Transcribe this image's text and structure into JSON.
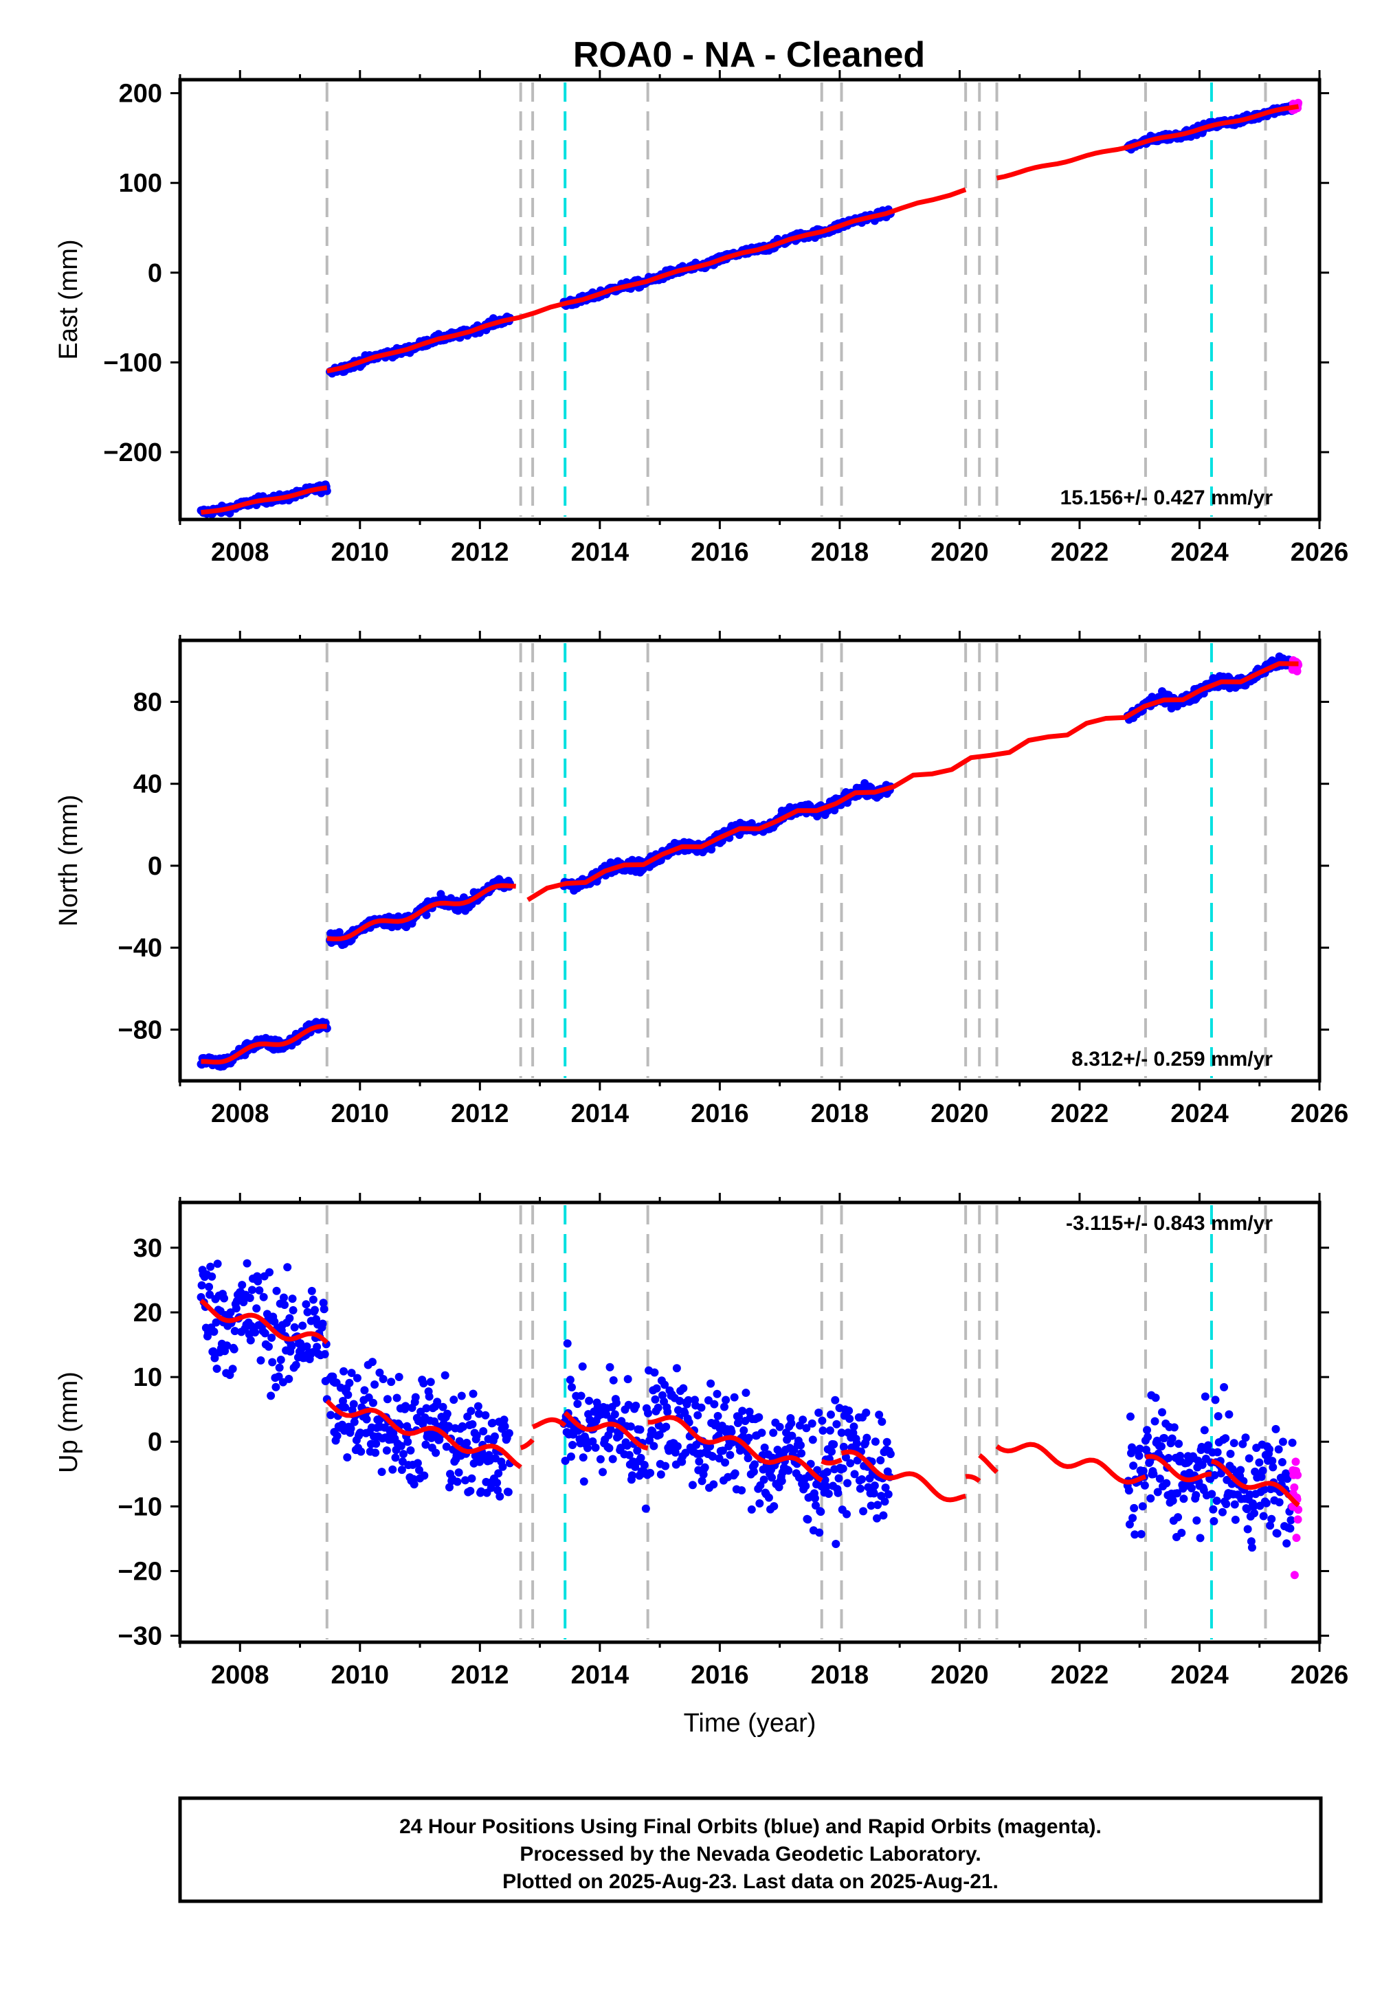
{
  "title": "ROA0  - NA - Cleaned",
  "footer": {
    "lines": [
      "24 Hour Positions Using Final Orbits (blue) and Rapid Orbits (magenta).",
      "Processed by the Nevada Geodetic Laboratory.",
      "Plotted on 2025-Aug-23. Last data on 2025-Aug-21."
    ]
  },
  "colors": {
    "final_orbits": "#0000ff",
    "rapid_orbits": "#ff00ff",
    "model": "#ff0000",
    "equipment_change": "#bbbbbb",
    "earthquake": "#00e0e0"
  },
  "chart_data": [
    {
      "type": "scatter",
      "ylabel": "East (mm)",
      "xlabel": "",
      "xlim": [
        2007.0,
        2026.0
      ],
      "ylim": [
        -275,
        215
      ],
      "xticks": [
        2008,
        2010,
        2012,
        2014,
        2016,
        2018,
        2020,
        2022,
        2024,
        2026
      ],
      "yticks": [
        -200,
        -100,
        0,
        100,
        200
      ],
      "rate_label": "15.156+/- 0.427 mm/yr",
      "rate_position": "bottom-right",
      "equipment_change_lines": [
        2009.45,
        2012.68,
        2012.88,
        2014.8,
        2017.7,
        2018.03,
        2020.1,
        2020.33,
        2020.62,
        2023.1,
        2025.1
      ],
      "earthquake_lines": [
        2013.42,
        2024.2
      ],
      "model_segments": [
        {
          "x": [
            2007.35,
            2009.45
          ],
          "y": [
            -268,
            -240
          ]
        },
        {
          "x": [
            2009.45,
            2020.1
          ],
          "y": [
            -110,
            92
          ]
        },
        {
          "x": [
            2020.62,
            2025.65
          ],
          "y": [
            106,
            186
          ]
        }
      ],
      "series": [
        {
          "name": "Final Orbits",
          "color": "#0000ff",
          "ranges": [
            [
              2007.35,
              2009.45
            ],
            [
              2009.5,
              2012.5
            ],
            [
              2013.4,
              2018.85
            ],
            [
              2022.8,
              2025.55
            ]
          ],
          "scatter": 3.0
        },
        {
          "name": "Rapid Orbits",
          "color": "#ff00ff",
          "ranges": [
            [
              2025.55,
              2025.65
            ]
          ],
          "scatter": 4.0
        }
      ]
    },
    {
      "type": "scatter",
      "ylabel": "North (mm)",
      "xlabel": "",
      "xlim": [
        2007.0,
        2026.0
      ],
      "ylim": [
        -105,
        110
      ],
      "xticks": [
        2008,
        2010,
        2012,
        2014,
        2016,
        2018,
        2020,
        2022,
        2024,
        2026
      ],
      "yticks": [
        -80,
        -40,
        0,
        40,
        80
      ],
      "rate_label": "8.312+/- 0.259 mm/yr",
      "rate_position": "bottom-right",
      "equipment_change_lines": [
        2009.45,
        2012.68,
        2012.88,
        2014.8,
        2017.7,
        2018.03,
        2020.1,
        2020.33,
        2020.62,
        2023.1,
        2025.1
      ],
      "earthquake_lines": [
        2013.42,
        2024.2
      ],
      "model_segments": [
        {
          "x": [
            2007.35,
            2009.45
          ],
          "y": [
            -97,
            -79
          ]
        },
        {
          "x": [
            2009.45,
            2012.6
          ],
          "y": [
            -36,
            -9
          ]
        },
        {
          "x": [
            2012.8,
            2025.65
          ],
          "y": [
            -15,
            100
          ]
        }
      ],
      "series": [
        {
          "name": "Final Orbits",
          "color": "#0000ff",
          "ranges": [
            [
              2007.35,
              2009.45
            ],
            [
              2009.5,
              2012.5
            ],
            [
              2013.4,
              2018.85
            ],
            [
              2022.8,
              2025.55
            ]
          ],
          "scatter": 2.0
        },
        {
          "name": "Rapid Orbits",
          "color": "#ff00ff",
          "ranges": [
            [
              2025.55,
              2025.65
            ]
          ],
          "scatter": 3.0
        }
      ]
    },
    {
      "type": "scatter",
      "ylabel": "Up (mm)",
      "xlabel": "Time (year)",
      "xlim": [
        2007.0,
        2026.0
      ],
      "ylim": [
        -31,
        37
      ],
      "xticks": [
        2008,
        2010,
        2012,
        2014,
        2016,
        2018,
        2020,
        2022,
        2024,
        2026
      ],
      "yticks": [
        -30,
        -20,
        -10,
        0,
        10,
        20,
        30
      ],
      "rate_label": "-3.115+/- 0.843 mm/yr",
      "rate_position": "top-right",
      "equipment_change_lines": [
        2009.45,
        2012.68,
        2012.88,
        2014.8,
        2017.7,
        2018.03,
        2020.1,
        2020.33,
        2020.62,
        2023.1,
        2025.1
      ],
      "earthquake_lines": [
        2013.42,
        2024.2
      ],
      "model_segments": [
        {
          "x": [
            2007.35,
            2009.45
          ],
          "y": [
            21,
            15
          ]
        },
        {
          "x": [
            2009.45,
            2012.68
          ],
          "y": [
            6,
            -3
          ]
        },
        {
          "x": [
            2012.68,
            2012.88
          ],
          "y": [
            0,
            1
          ]
        },
        {
          "x": [
            2012.88,
            2013.42
          ],
          "y": [
            3,
            2
          ]
        },
        {
          "x": [
            2013.42,
            2014.8
          ],
          "y": [
            4,
            0
          ]
        },
        {
          "x": [
            2014.8,
            2017.7
          ],
          "y": [
            4,
            -5
          ]
        },
        {
          "x": [
            2017.7,
            2018.03
          ],
          "y": [
            -2,
            -3
          ]
        },
        {
          "x": [
            2018.03,
            2020.1
          ],
          "y": [
            -2,
            -9
          ]
        },
        {
          "x": [
            2020.1,
            2020.33
          ],
          "y": [
            -6,
            -7
          ]
        },
        {
          "x": [
            2020.33,
            2020.62
          ],
          "y": [
            -3,
            -4
          ]
        },
        {
          "x": [
            2020.62,
            2023.1
          ],
          "y": [
            0,
            -6
          ]
        },
        {
          "x": [
            2023.1,
            2024.2
          ],
          "y": [
            -3,
            -6
          ]
        },
        {
          "x": [
            2024.2,
            2025.65
          ],
          "y": [
            -4,
            -9
          ]
        }
      ],
      "series": [
        {
          "name": "Final Orbits",
          "color": "#0000ff",
          "ranges": [
            [
              2007.35,
              2009.45
            ],
            [
              2009.5,
              2012.5
            ],
            [
              2013.4,
              2018.85
            ],
            [
              2022.8,
              2025.55
            ]
          ],
          "scatter": 6.0
        },
        {
          "name": "Rapid Orbits",
          "color": "#ff00ff",
          "ranges": [
            [
              2025.55,
              2025.65
            ]
          ],
          "scatter": 8.0
        }
      ]
    }
  ]
}
